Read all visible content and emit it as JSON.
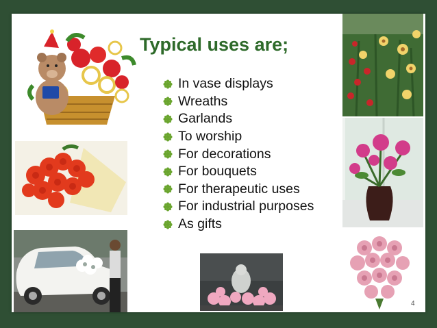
{
  "slide": {
    "title": "Typical uses are;",
    "bullets": [
      "In vase displays",
      "Wreaths",
      "Garlands",
      "To worship",
      "For decorations",
      "For bouquets",
      "For therapeutic uses",
      "For industrial purposes",
      "As gifts"
    ],
    "slide_number": "4"
  },
  "images": [
    {
      "name": "teddy-bear-flower-basket",
      "label": "teddy bear in flower basket"
    },
    {
      "name": "red-rose-bouquet",
      "label": "red rose bouquet"
    },
    {
      "name": "car-flower-decoration",
      "label": "car decorated with flowers"
    },
    {
      "name": "statue-with-flowers",
      "label": "statue with flowers"
    },
    {
      "name": "flower-plants",
      "label": "red and yellow flower plants"
    },
    {
      "name": "vase-flowers",
      "label": "pink flowers in vase"
    },
    {
      "name": "pink-rose-bouquet",
      "label": "pink rose bouquet"
    }
  ],
  "colors": {
    "background": "#2f4f34",
    "title": "#2e6a2a",
    "bullet": "#6aa52e"
  }
}
